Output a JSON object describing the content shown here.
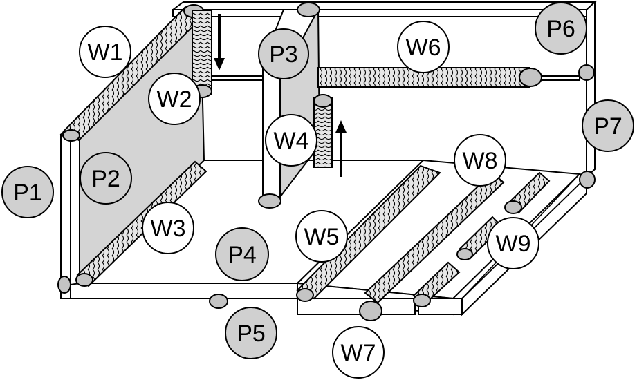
{
  "colors": {
    "plate_fill": "#d4d4d4",
    "edge_fill": "#ffffff",
    "weld_fill": "#c4c4c4",
    "part_label_fill": "#d0d0d0",
    "weld_label_fill": "#ffffff",
    "stroke": "#000000"
  },
  "parts": [
    "P1",
    "P2",
    "P3",
    "P4",
    "P5",
    "P6",
    "P7"
  ],
  "welds": [
    "W1",
    "W2",
    "W3",
    "W4",
    "W5",
    "W6",
    "W7",
    "W8",
    "W9"
  ],
  "labels": {
    "P1": "P1",
    "P2": "P2",
    "P3": "P3",
    "P4": "P4",
    "P5": "P5",
    "P6": "P6",
    "P7": "P7",
    "W1": "W1",
    "W2": "W2",
    "W3": "W3",
    "W4": "W4",
    "W5": "W5",
    "W6": "W6",
    "W7": "W7",
    "W8": "W8",
    "W9": "W9"
  }
}
